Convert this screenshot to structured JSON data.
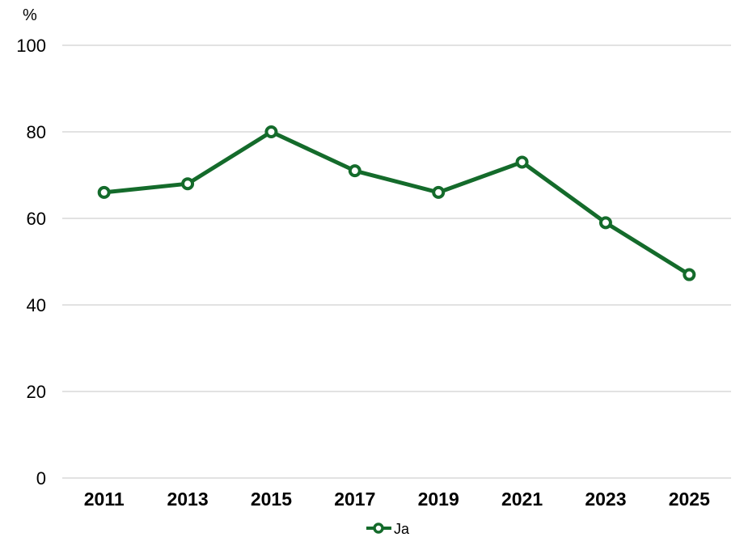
{
  "chart_data": {
    "type": "line",
    "categories": [
      "2011",
      "2013",
      "2015",
      "2017",
      "2019",
      "2021",
      "2023",
      "2025"
    ],
    "series": [
      {
        "name": "Ja",
        "values": [
          66,
          68,
          80,
          71,
          66,
          73,
          59,
          47
        ]
      }
    ],
    "title": "",
    "xlabel": "",
    "ylabel": "%",
    "ylim": [
      0,
      100
    ],
    "yticks": [
      0,
      20,
      40,
      60,
      80,
      100
    ],
    "grid": true,
    "legend_position": "bottom",
    "marker": "open-circle"
  },
  "colors": {
    "line": "#146b2b",
    "marker_fill": "#ffffff",
    "gridline": "#d9d9d9",
    "text": "#000000",
    "background": "#ffffff"
  }
}
